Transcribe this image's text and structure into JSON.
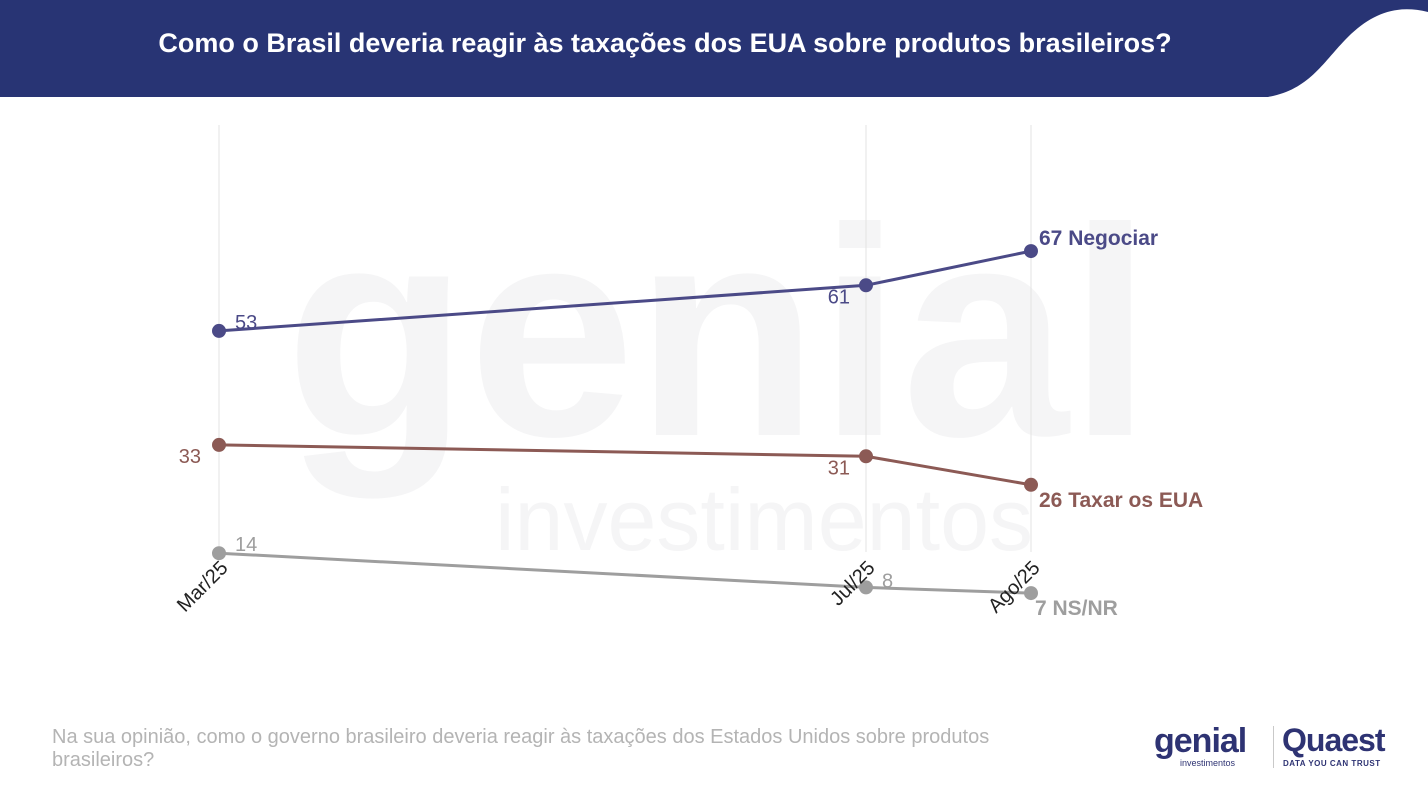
{
  "header": {
    "title": "Como o Brasil deveria reagir às taxações dos EUA sobre produtos brasileiros?",
    "color": "#283474"
  },
  "chart_data": {
    "type": "line",
    "categories": [
      "Mar/25",
      "Jul/25",
      "Ago/25"
    ],
    "ylim": [
      0,
      80
    ],
    "grid": "vertical only",
    "series": [
      {
        "name": "Negociar",
        "values": [
          53,
          61,
          67
        ],
        "color": "#4b4a87",
        "point_labels": [
          "53",
          "61",
          "67 Negociar"
        ]
      },
      {
        "name": "Taxar os EUA",
        "values": [
          33,
          31,
          26
        ],
        "color": "#8c5a55",
        "point_labels": [
          "33",
          "31",
          "26 Taxar os EUA"
        ]
      },
      {
        "name": "NS/NR",
        "values": [
          14,
          8,
          7
        ],
        "color": "#9e9e9e",
        "point_labels": [
          "14",
          "8",
          "7 NS/NR"
        ]
      }
    ]
  },
  "footer": {
    "question": "Na sua opinião, como o governo brasileiro deveria reagir às taxações dos Estados Unidos sobre produtos brasileiros?"
  },
  "logos": {
    "genial": "genial",
    "genial_sub": "investimentos",
    "quaest": "Quaest",
    "quaest_tagline": "DATA YOU CAN TRUST"
  },
  "watermark": {
    "text_main": "genial",
    "text_sub": "investimentos"
  }
}
